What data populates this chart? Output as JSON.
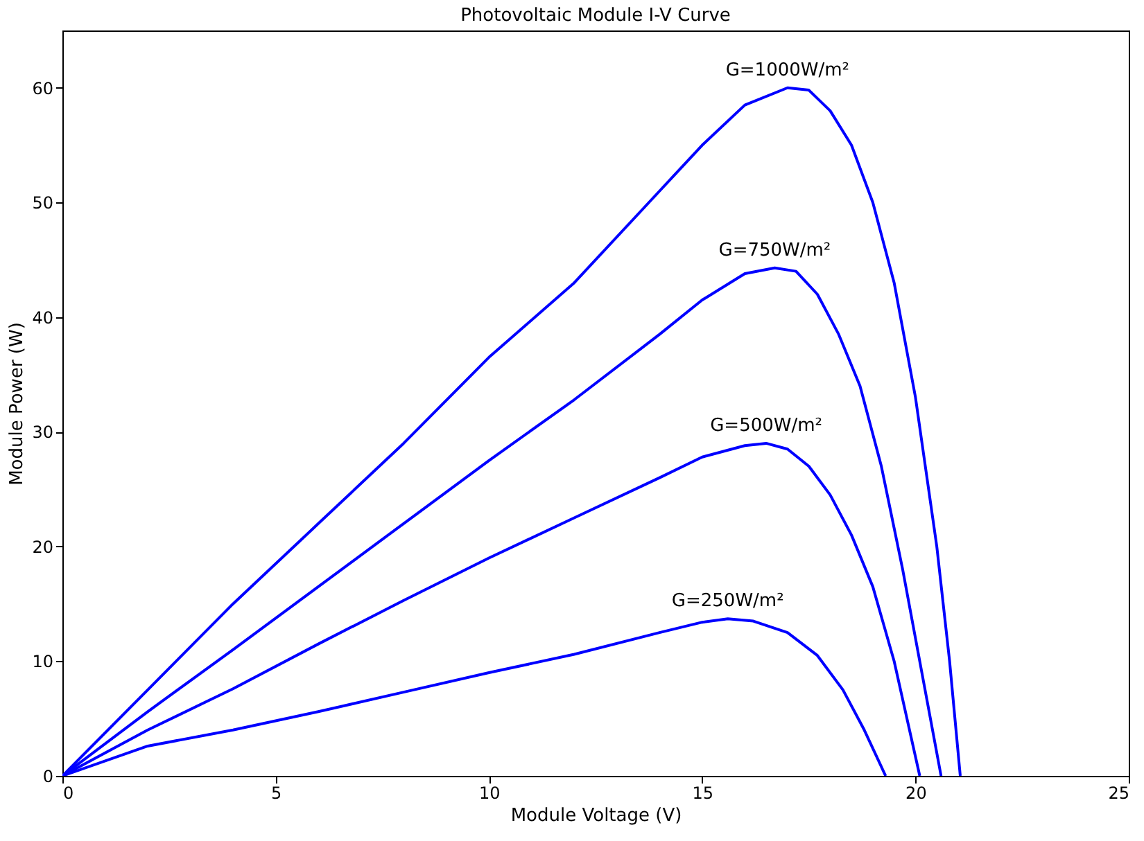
{
  "chart_data": {
    "type": "line",
    "title": "Photovoltaic Module I-V Curve",
    "xlabel": "Module Voltage (V)",
    "ylabel": "Module Power (W)",
    "xlim": [
      0,
      25
    ],
    "xticks": [
      0,
      5,
      10,
      15,
      20,
      25
    ],
    "ylim": [
      0,
      65
    ],
    "yticks": [
      0,
      10,
      20,
      30,
      40,
      50,
      60
    ],
    "grid": false,
    "line_style": "solid",
    "series": [
      {
        "name": "G=1000W/m²",
        "color": "#0000ff",
        "x": [
          0,
          2,
          4,
          6,
          8,
          10,
          12,
          14,
          15,
          16,
          17,
          17.5,
          18,
          18.5,
          19,
          19.5,
          20,
          20.5,
          20.8,
          21.05
        ],
        "values": [
          0,
          7.5,
          15,
          22,
          29,
          36.5,
          43,
          51,
          55,
          58.5,
          60,
          59.8,
          58,
          55,
          50,
          43,
          33,
          20,
          10,
          0
        ]
      },
      {
        "name": "G=750W/m²",
        "color": "#0000ff",
        "x": [
          0,
          2,
          4,
          6,
          8,
          10,
          12,
          14,
          15,
          16,
          16.7,
          17.2,
          17.7,
          18.2,
          18.7,
          19.2,
          19.7,
          20.2,
          20.6
        ],
        "values": [
          0,
          5.6,
          11,
          16.5,
          22,
          27.5,
          32.8,
          38.5,
          41.5,
          43.8,
          44.3,
          44,
          42,
          38.5,
          34,
          27,
          18,
          8,
          0
        ]
      },
      {
        "name": "G=500W/m²",
        "color": "#0000ff",
        "x": [
          0,
          2,
          4,
          6,
          8,
          10,
          12,
          14,
          15,
          16,
          16.5,
          17,
          17.5,
          18,
          18.5,
          19,
          19.5,
          20.1
        ],
        "values": [
          0,
          4,
          7.6,
          11.5,
          15.3,
          19,
          22.5,
          26,
          27.8,
          28.8,
          29,
          28.5,
          27,
          24.5,
          21,
          16.5,
          10,
          0
        ]
      },
      {
        "name": "G=250W/m²",
        "color": "#0000ff",
        "x": [
          0,
          2,
          4,
          6,
          8,
          10,
          12,
          14,
          15,
          15.6,
          16.2,
          17,
          17.7,
          18.3,
          18.8,
          19.3
        ],
        "values": [
          0,
          2.6,
          4,
          5.6,
          7.3,
          9,
          10.6,
          12.5,
          13.4,
          13.7,
          13.5,
          12.5,
          10.5,
          7.5,
          4,
          0
        ]
      }
    ]
  }
}
